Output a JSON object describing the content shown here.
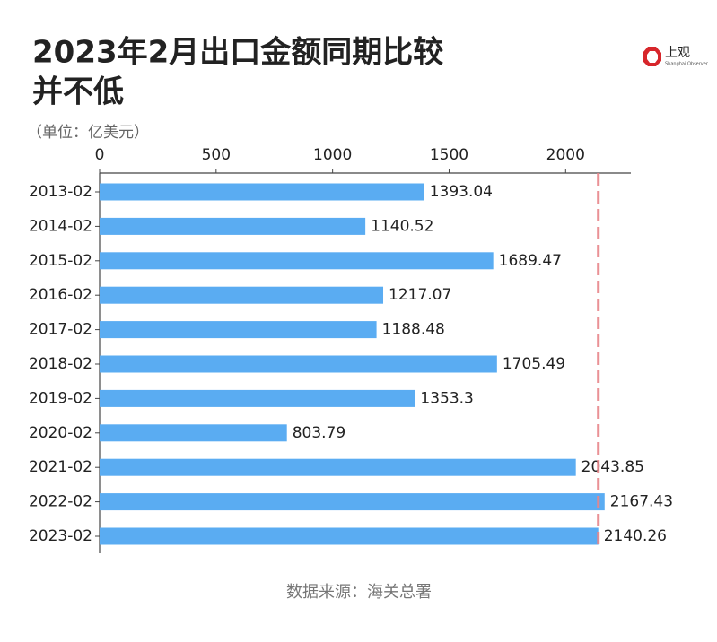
{
  "chart_data": {
    "type": "barh",
    "title": [
      "2023年2月出口金额同期比较",
      "并不低"
    ],
    "subtitle": "（单位：亿美元）",
    "source": "数据来源：海关总署",
    "brand": {
      "name": "上观",
      "tagline": "Shanghai Observer"
    },
    "categories": [
      "2013-02",
      "2014-02",
      "2015-02",
      "2016-02",
      "2017-02",
      "2018-02",
      "2019-02",
      "2020-02",
      "2021-02",
      "2022-02",
      "2023-02"
    ],
    "values": [
      1393.04,
      1140.52,
      1689.47,
      1217.07,
      1188.48,
      1705.49,
      1353.3,
      803.79,
      2043.85,
      2167.43,
      2140.26
    ],
    "color": "#5aacf2",
    "reference_color": "#e8868a",
    "xlim": [
      0,
      2280
    ],
    "xticks": [
      0,
      500,
      1000,
      1500,
      2000
    ]
  }
}
